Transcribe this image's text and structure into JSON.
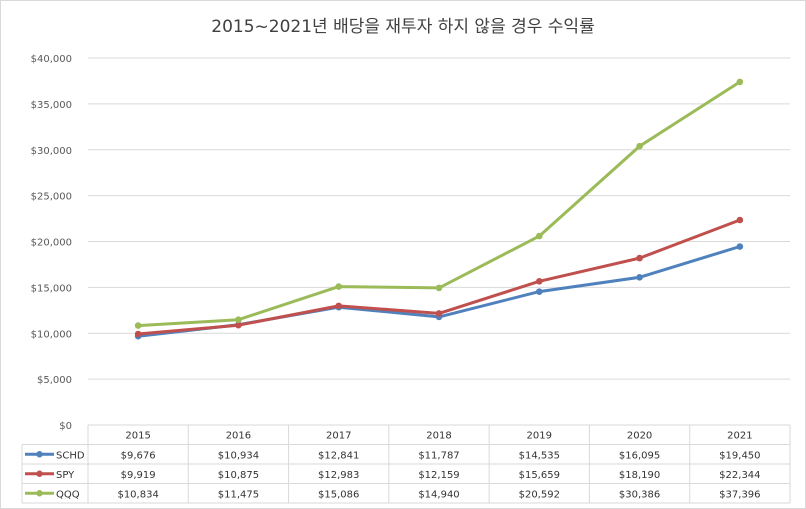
{
  "chart_data": {
    "type": "line",
    "title": "2015~2021년 배당을 재투자 하지 않을 경우 수익률",
    "categories": [
      "2015",
      "2016",
      "2017",
      "2018",
      "2019",
      "2020",
      "2021"
    ],
    "ylim": [
      0,
      40000
    ],
    "ytick_values": [
      0,
      5000,
      10000,
      15000,
      20000,
      25000,
      30000,
      35000,
      40000
    ],
    "ytick_labels": [
      "$0",
      "$5,000",
      "$10,000",
      "$15,000",
      "$20,000",
      "$25,000",
      "$30,000",
      "$35,000",
      "$40,000"
    ],
    "grid": true,
    "legend": "data-table-left",
    "series": [
      {
        "name": "SCHD",
        "color": "#4f81bd",
        "values": [
          9676,
          10934,
          12841,
          11787,
          14535,
          16095,
          19450
        ],
        "labels": [
          "$9,676",
          "$10,934",
          "$12,841",
          "$11,787",
          "$14,535",
          "$16,095",
          "$19,450"
        ]
      },
      {
        "name": "SPY",
        "color": "#c0504d",
        "values": [
          9919,
          10875,
          12983,
          12159,
          15659,
          18190,
          22344
        ],
        "labels": [
          "$9,919",
          "$10,875",
          "$12,983",
          "$12,159",
          "$15,659",
          "$18,190",
          "$22,344"
        ]
      },
      {
        "name": "QQQ",
        "color": "#9bbb59",
        "values": [
          10834,
          11475,
          15086,
          14940,
          20592,
          30386,
          37396
        ],
        "labels": [
          "$10,834",
          "$11,475",
          "$15,086",
          "$14,940",
          "$20,592",
          "$30,386",
          "$37,396"
        ]
      }
    ]
  },
  "colors": {
    "grid": "#d9d9d9",
    "text": "#404040"
  }
}
